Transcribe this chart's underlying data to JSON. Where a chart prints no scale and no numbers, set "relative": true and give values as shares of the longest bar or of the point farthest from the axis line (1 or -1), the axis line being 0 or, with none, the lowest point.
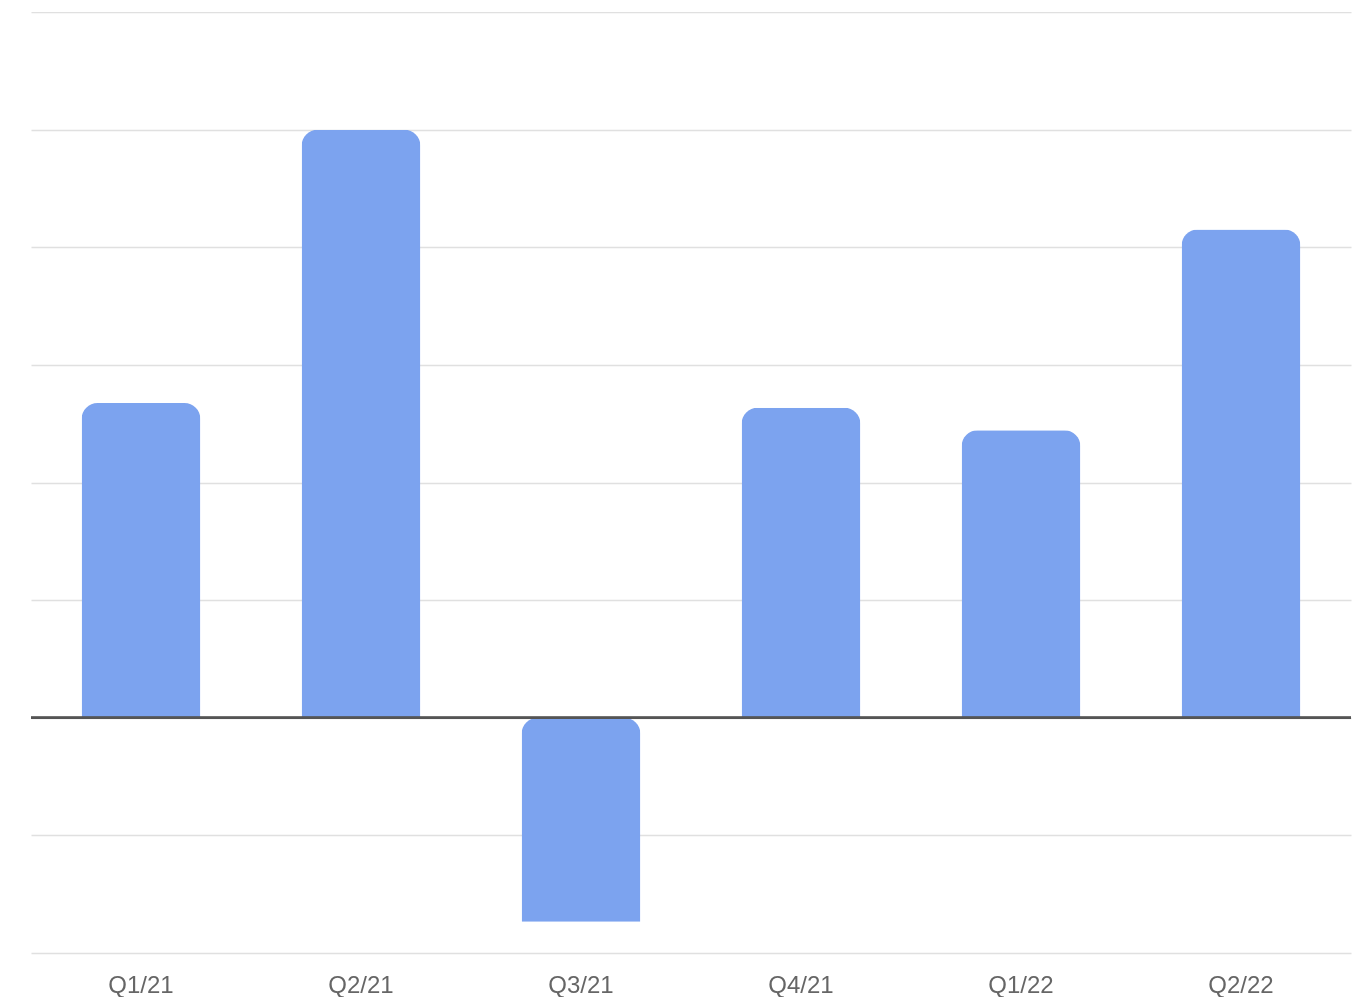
{
  "chart_data": {
    "type": "bar",
    "relative": true,
    "categories": [
      "Q1/21",
      "Q2/21",
      "Q3/21",
      "Q4/21",
      "Q1/22",
      "Q2/22"
    ],
    "values": [
      0.535,
      1,
      -0.347,
      0.527,
      0.489,
      0.83
    ],
    "color": "#7ca3ef",
    "grid": "y"
  }
}
